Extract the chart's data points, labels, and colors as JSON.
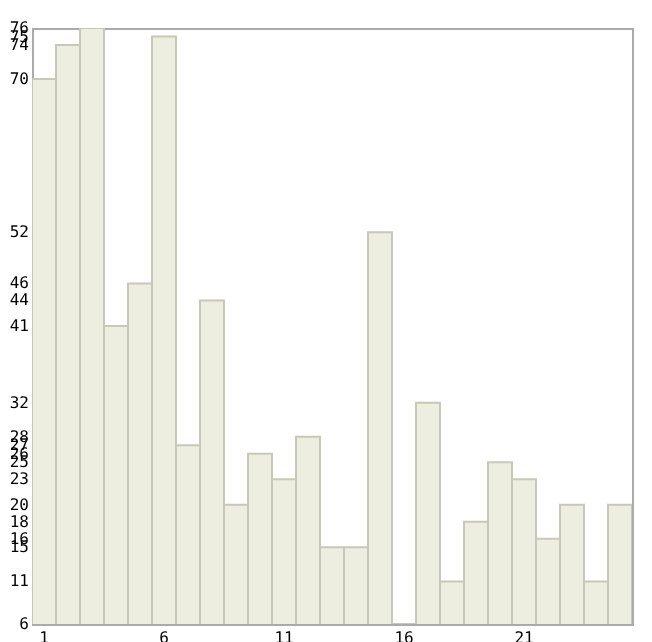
{
  "chart_data": {
    "type": "bar",
    "categories": [
      "1",
      null,
      null,
      null,
      null,
      "6",
      null,
      null,
      null,
      null,
      "11",
      null,
      null,
      null,
      null,
      "16",
      null,
      null,
      null,
      null,
      "21",
      null,
      null,
      null,
      null
    ],
    "values": [
      70,
      74,
      76,
      41,
      46,
      75,
      27,
      44,
      20,
      26,
      23,
      28,
      15,
      15,
      52,
      6,
      32,
      11,
      18,
      25,
      23,
      16,
      20,
      11,
      20
    ],
    "color": "#eeeee0",
    "ylim": [
      6,
      76
    ],
    "yticks": [
      6,
      11,
      15,
      16,
      18,
      20,
      23,
      25,
      26,
      27,
      28,
      32,
      41,
      44,
      46,
      52,
      70,
      74,
      75,
      76
    ]
  }
}
